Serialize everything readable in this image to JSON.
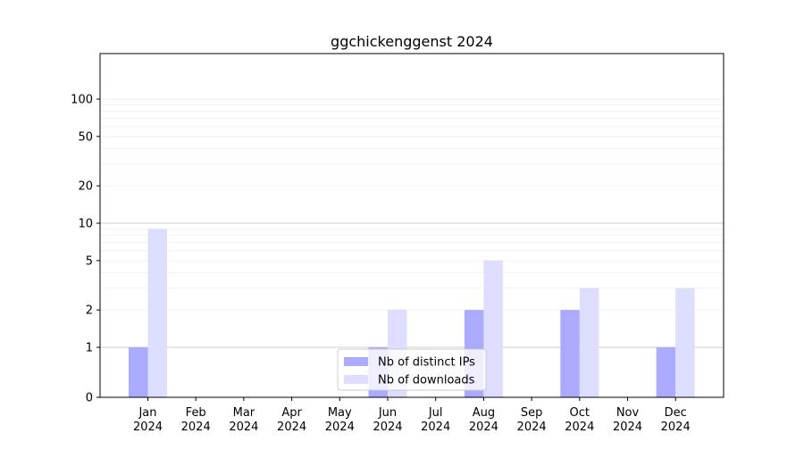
{
  "chart_data": {
    "type": "bar",
    "title": "ggchickenggenst 2024",
    "xlabel": "",
    "ylabel": "",
    "categories": [
      "Jan\n2024",
      "Feb\n2024",
      "Mar\n2024",
      "Apr\n2024",
      "May\n2024",
      "Jun\n2024",
      "Jul\n2024",
      "Aug\n2024",
      "Sep\n2024",
      "Oct\n2024",
      "Nov\n2024",
      "Dec\n2024"
    ],
    "yscale": "symlog",
    "ylim": [
      0,
      110
    ],
    "yticks": [
      0,
      1,
      2,
      5,
      10,
      20,
      50,
      100
    ],
    "grid": true,
    "legend_position": "lower-center",
    "series": [
      {
        "name": "Nb of distinct IPs",
        "color": "#aaaaff",
        "values": [
          1,
          0,
          0,
          0,
          0,
          1,
          0,
          2,
          0,
          2,
          0,
          1
        ]
      },
      {
        "name": "Nb of downloads",
        "color": "#ddddff",
        "values": [
          9,
          0,
          0,
          0,
          0,
          2,
          0,
          5,
          0,
          3,
          0,
          3
        ]
      }
    ]
  }
}
